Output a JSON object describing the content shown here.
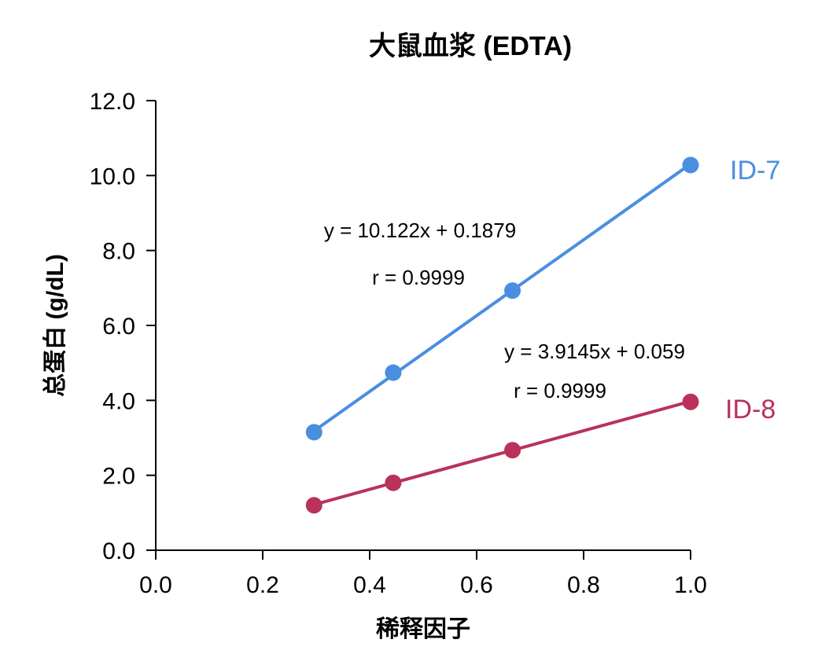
{
  "chart_data": {
    "type": "scatter",
    "title": "大鼠血浆 (EDTA)",
    "xlabel": "稀释因子",
    "ylabel": "总蛋白 (g/dL)",
    "xlim": [
      0.0,
      1.0
    ],
    "ylim": [
      0.0,
      12.0
    ],
    "xticks": [
      "0.0",
      "0.2",
      "0.4",
      "0.6",
      "0.8",
      "1.0"
    ],
    "yticks": [
      "0.0",
      "2.0",
      "4.0",
      "6.0",
      "8.0",
      "10.0",
      "12.0"
    ],
    "series": [
      {
        "name": "ID-7",
        "color": "#4a8ee0",
        "x": [
          0.296,
          0.444,
          0.667,
          1.0
        ],
        "y": [
          3.15,
          4.74,
          6.93,
          10.28
        ],
        "fit": {
          "slope": 10.122,
          "intercept": 0.1879
        },
        "equation": "y = 10.122x + 0.1879",
        "r": "r = 0.9999"
      },
      {
        "name": "ID-8",
        "color": "#b8325a",
        "x": [
          0.296,
          0.444,
          0.667,
          1.0
        ],
        "y": [
          1.2,
          1.8,
          2.67,
          3.96
        ],
        "fit": {
          "slope": 3.9145,
          "intercept": 0.059
        },
        "equation": "y = 3.9145x + 0.059",
        "r": "r = 0.9999"
      }
    ]
  }
}
